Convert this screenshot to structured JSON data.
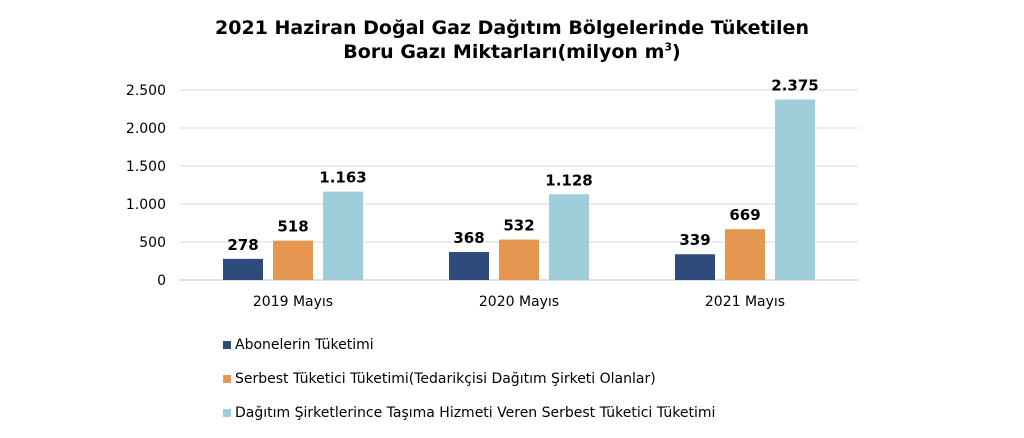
{
  "title_line1": "2021 Haziran Doğal Gaz Dağıtım Bölgelerinde Tüketilen",
  "title_line2": "Boru Gazı Miktarları(milyon m",
  "title_sup": "3",
  "title_end": ")",
  "colors": {
    "series1": "#2f4b7c",
    "series2": "#e59752",
    "series3": "#9fcdd9",
    "grid": "#d9d9d9",
    "axis": "#bfbfbf"
  },
  "chart_data": {
    "type": "bar",
    "categories": [
      "2019 Mayıs",
      "2020 Mayıs",
      "2021 Mayıs"
    ],
    "series": [
      {
        "name": "Abonelerin Tüketimi",
        "values": [
          278,
          368,
          339
        ],
        "labels": [
          "278",
          "368",
          "339"
        ]
      },
      {
        "name": "Serbest Tüketici Tüketimi(Tedarikçisi Dağıtım Şirketi Olanlar)",
        "values": [
          518,
          532,
          669
        ],
        "labels": [
          "518",
          "532",
          "669"
        ]
      },
      {
        "name": "Dağıtım Şirketlerince Taşıma Hizmeti Veren Serbest Tüketici Tüketimi",
        "values": [
          1163,
          1128,
          2375
        ],
        "labels": [
          "1.163",
          "1.128",
          "2.375"
        ]
      }
    ],
    "yticks": [
      0,
      500,
      1000,
      1500,
      2000,
      2500
    ],
    "ytick_labels": [
      "0",
      "500",
      "1.000",
      "1.500",
      "2.000",
      "2.500"
    ],
    "ylim": [
      0,
      2500
    ],
    "grid": true,
    "legend_position": "bottom"
  }
}
